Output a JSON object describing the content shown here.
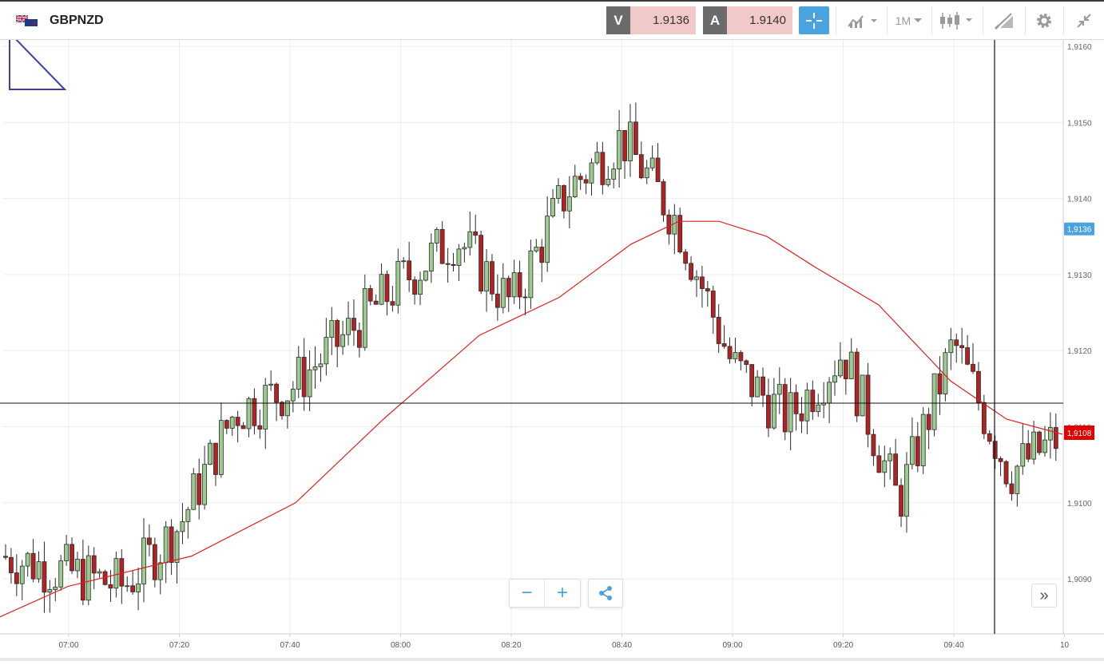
{
  "header": {
    "symbol": "GBPNZD",
    "flag_icon": "gb-nz-flag-icon",
    "sell": {
      "label": "V",
      "price": "1.9136"
    },
    "buy": {
      "label": "A",
      "price": "1.9140"
    },
    "timeframe": "1M",
    "icons": [
      "crosshair-icon",
      "line-chart-icon",
      "candlestick-icon",
      "drawing-tool-icon",
      "gear-icon",
      "collapse-icon"
    ]
  },
  "colors": {
    "up": "#9ccc8f",
    "down": "#b22222",
    "ma": "#e02020",
    "accent": "#4aa3df",
    "last_badge": "#e00000"
  },
  "controls": {
    "zoom_out": "−",
    "zoom_in": "+",
    "share_icon": "share-icon",
    "expand": "»"
  },
  "chart_data": {
    "type": "candlestick",
    "symbol": "GBPNZD",
    "interval": "1M",
    "x_ticks": [
      "07:00",
      "07:20",
      "07:40",
      "08:00",
      "08:20",
      "08:40",
      "09:00",
      "09:20",
      "09:40",
      "10"
    ],
    "y_ticks": [
      "1,9160",
      "1,9150",
      "1,9140",
      "1,9130",
      "1,9120",
      "1,9110",
      "1,9100",
      "1,9090"
    ],
    "ylim": [
      1.90835,
      1.91615
    ],
    "current_bid_label": "1,9136",
    "current_price_label": "1,9108",
    "horizontal_line": 1.91131,
    "candle_times": [
      "06:48",
      "07:10",
      "07:20",
      "07:30",
      "07:40",
      "07:50",
      "08:00",
      "08:10",
      "08:20",
      "08:30",
      "08:40",
      "08:50",
      "09:00",
      "09:10",
      "09:20",
      "09:30",
      "09:40",
      "09:50",
      "10:00"
    ],
    "candle_closes": [
      1.9093,
      1.9089,
      1.9097,
      1.9112,
      1.9115,
      1.9122,
      1.9129,
      1.9135,
      1.9126,
      1.9141,
      1.9148,
      1.9137,
      1.9118,
      1.9111,
      1.912,
      1.91,
      1.9121,
      1.9104,
      1.9109
    ],
    "ma_series": {
      "type": "line",
      "points": [
        [
          0,
          1.9085
        ],
        [
          85,
          1.9089
        ],
        [
          240,
          1.9093
        ],
        [
          370,
          1.91
        ],
        [
          480,
          1.9111
        ],
        [
          600,
          1.9122
        ],
        [
          700,
          1.9127
        ],
        [
          790,
          1.9134
        ],
        [
          850,
          1.9137
        ],
        [
          900,
          1.9137
        ],
        [
          960,
          1.9135
        ],
        [
          1020,
          1.9131
        ],
        [
          1100,
          1.9126
        ],
        [
          1190,
          1.9116
        ],
        [
          1260,
          1.9111
        ],
        [
          1330,
          1.9109
        ]
      ]
    }
  }
}
